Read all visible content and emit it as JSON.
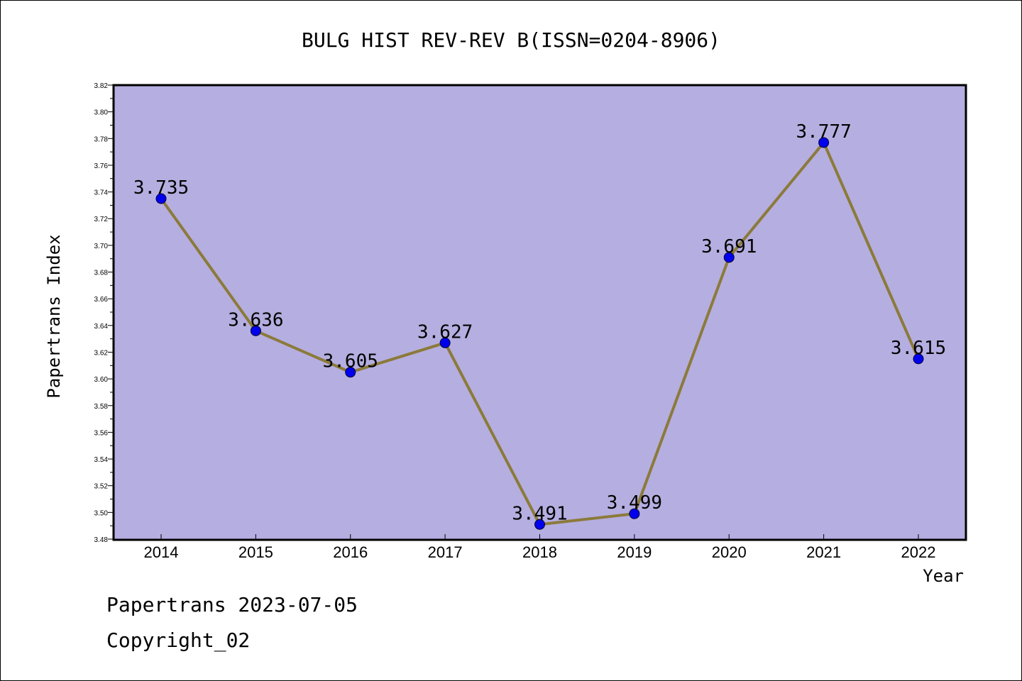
{
  "chart_data": {
    "type": "line",
    "title": "BULG HIST REV-REV B(ISSN=0204-8906)",
    "xlabel": "Year",
    "ylabel": "Papertrans Index",
    "categories": [
      "2014",
      "2015",
      "2016",
      "2017",
      "2018",
      "2019",
      "2020",
      "2021",
      "2022"
    ],
    "values": [
      3.735,
      3.636,
      3.605,
      3.627,
      3.491,
      3.499,
      3.691,
      3.777,
      3.615
    ],
    "data_labels": [
      "3.735",
      "3.636",
      "3.605",
      "3.627",
      "3.491",
      "3.499",
      "3.691",
      "3.777",
      "3.615"
    ],
    "ylim": [
      3.48,
      3.82
    ],
    "y_ticks": [
      "3.48",
      "3.50",
      "3.52",
      "3.54",
      "3.56",
      "3.58",
      "3.60",
      "3.62",
      "3.64",
      "3.66",
      "3.68",
      "3.70",
      "3.72",
      "3.74",
      "3.76",
      "3.78",
      "3.80",
      "3.82"
    ],
    "grid": false,
    "colors": {
      "plot_background": "#b5aee0",
      "line": "#8b7a3a",
      "marker": "#0000ee"
    }
  },
  "footer": {
    "date_line": "Papertrans 2023-07-05",
    "copyright_line": "Copyright_02"
  }
}
